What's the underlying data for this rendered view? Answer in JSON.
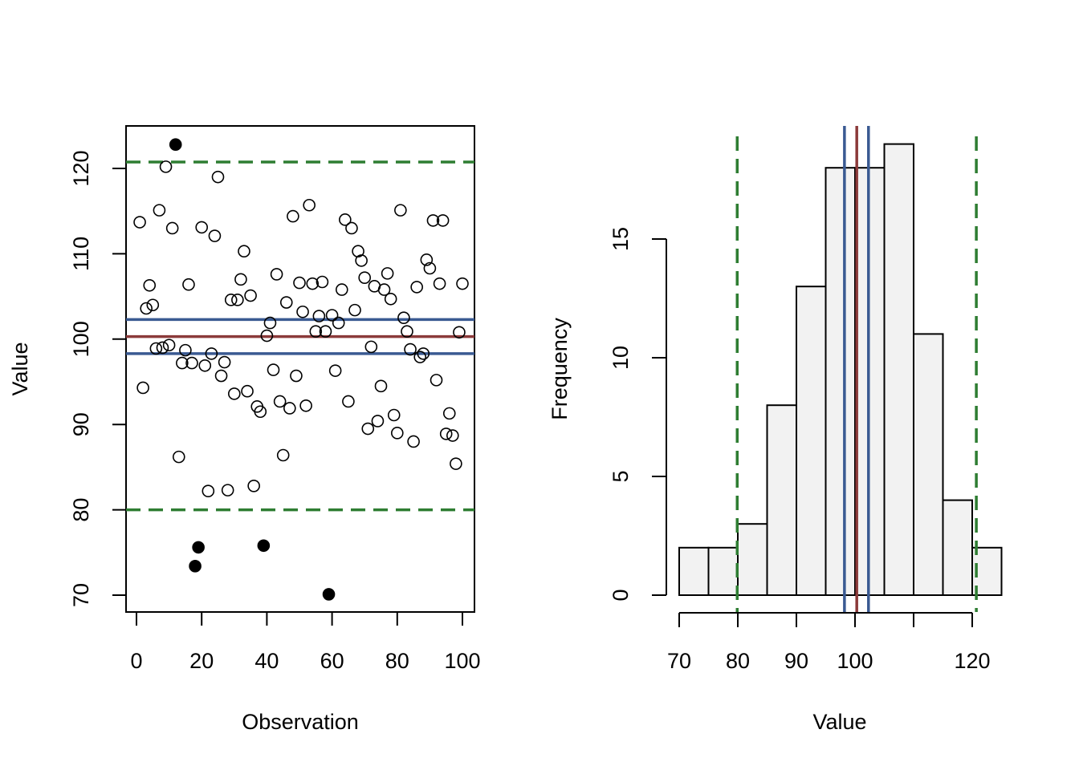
{
  "chart_data": [
    {
      "type": "scatter",
      "xlabel": "Observation",
      "ylabel": "Value",
      "xlim": [
        0,
        100
      ],
      "ylim": [
        70,
        120
      ],
      "x_ticks": [
        "0",
        "20",
        "40",
        "60",
        "80",
        "100"
      ],
      "y_ticks": [
        "70",
        "80",
        "90",
        "100",
        "110",
        "120"
      ],
      "x": [
        1,
        2,
        3,
        4,
        5,
        6,
        7,
        8,
        9,
        10,
        11,
        12,
        13,
        14,
        15,
        16,
        17,
        18,
        19,
        20,
        21,
        22,
        23,
        24,
        25,
        26,
        27,
        28,
        29,
        30,
        31,
        32,
        33,
        34,
        35,
        36,
        37,
        38,
        39,
        40,
        41,
        42,
        43,
        44,
        45,
        46,
        47,
        48,
        49,
        50,
        51,
        52,
        53,
        54,
        55,
        56,
        57,
        58,
        59,
        60,
        61,
        62,
        63,
        64,
        65,
        66,
        67,
        68,
        69,
        70,
        71,
        72,
        73,
        74,
        75,
        76,
        77,
        78,
        79,
        80,
        81,
        82,
        83,
        84,
        85,
        86,
        87,
        88,
        89,
        90,
        91,
        92,
        93,
        94,
        95,
        96,
        97,
        98,
        99,
        100
      ],
      "y": [
        113.7,
        94.3,
        103.6,
        106.3,
        104.0,
        98.9,
        115.1,
        99.0,
        120.2,
        99.3,
        113.0,
        122.8,
        86.2,
        97.2,
        98.7,
        106.4,
        97.2,
        73.4,
        75.6,
        113.1,
        96.9,
        82.2,
        98.3,
        112.1,
        119.0,
        95.7,
        97.3,
        82.3,
        104.6,
        93.6,
        104.6,
        107.0,
        110.3,
        93.9,
        105.1,
        82.8,
        92.1,
        91.5,
        75.8,
        100.4,
        101.9,
        96.4,
        107.6,
        92.7,
        86.4,
        104.3,
        91.9,
        114.4,
        95.7,
        106.6,
        103.2,
        92.2,
        115.7,
        106.5,
        100.9,
        102.7,
        106.7,
        100.9,
        70.1,
        102.8,
        96.3,
        101.9,
        105.8,
        114.0,
        92.7,
        113.0,
        103.4,
        110.3,
        109.2,
        107.2,
        89.5,
        99.1,
        106.2,
        90.4,
        94.5,
        105.8,
        107.7,
        104.7,
        91.1,
        89.0,
        115.1,
        102.5,
        100.9,
        98.8,
        88.0,
        106.1,
        97.9,
        98.3,
        109.3,
        108.3,
        113.9,
        95.2,
        106.5,
        113.9,
        88.9,
        91.3,
        88.7,
        85.4,
        100.8,
        106.5
      ],
      "outlier_style": "filled points outside dashed limits",
      "hlines": [
        {
          "value": 100.3,
          "color": "#8b3a3a",
          "style": "solid"
        },
        {
          "value": 102.3,
          "color": "#3a5a92",
          "style": "solid"
        },
        {
          "value": 98.3,
          "color": "#3a5a92",
          "style": "solid"
        },
        {
          "value": 120.75,
          "color": "#2e7d32",
          "style": "dashed"
        },
        {
          "value": 80.0,
          "color": "#2e7d32",
          "style": "dashed"
        }
      ]
    },
    {
      "type": "bar",
      "subtype": "histogram",
      "xlabel": "Value",
      "ylabel": "Frequency",
      "xlim": [
        70,
        125
      ],
      "ylim": [
        0,
        19
      ],
      "bin_edges": [
        70,
        75,
        80,
        85,
        90,
        95,
        100,
        105,
        110,
        115,
        120,
        125
      ],
      "values": [
        2,
        2,
        3,
        8,
        13,
        18,
        18,
        19,
        11,
        4,
        2
      ],
      "x_ticks": [
        70,
        80,
        90,
        100,
        110,
        120
      ],
      "x_tick_labels": [
        "70",
        "80",
        "90",
        "100",
        "",
        "120"
      ],
      "y_ticks": [
        "0",
        "5",
        "10",
        "15"
      ],
      "bar_fill": "#f2f2f2",
      "vlines": [
        {
          "value": 100.3,
          "color": "#8b3a3a",
          "style": "solid"
        },
        {
          "value": 98.2,
          "color": "#3a5a92",
          "style": "solid"
        },
        {
          "value": 102.3,
          "color": "#3a5a92",
          "style": "solid"
        },
        {
          "value": 79.9,
          "color": "#2e7d32",
          "style": "dashed"
        },
        {
          "value": 120.7,
          "color": "#2e7d32",
          "style": "dashed"
        }
      ]
    }
  ]
}
